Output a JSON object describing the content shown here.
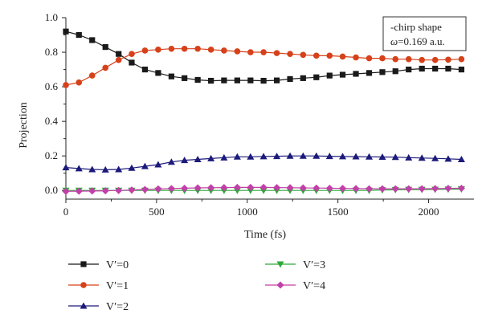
{
  "chart_data": {
    "type": "line",
    "xlabel": "Time (fs)",
    "ylabel": "Projection",
    "xlim": [
      0,
      2250
    ],
    "ylim": [
      -0.05,
      1.0
    ],
    "xticks": [
      0,
      500,
      1000,
      1500,
      2000
    ],
    "xtick_labels": [
      "0",
      "500",
      "1000",
      "1500",
      "2000"
    ],
    "yticks": [
      0.0,
      0.2,
      0.4,
      0.6,
      0.8,
      1.0
    ],
    "ytick_labels": [
      "0.0",
      "0.2",
      "0.4",
      "0.6",
      "0.8",
      "1.0"
    ],
    "grid": false,
    "annotation": {
      "line1": "-chirp shape",
      "line2_symbol": "ω",
      "line2_rest": "=0.169 a.u."
    },
    "x": [
      0,
      72,
      145,
      218,
      291,
      363,
      436,
      509,
      582,
      654,
      727,
      800,
      872,
      945,
      1018,
      1090,
      1163,
      1236,
      1308,
      1381,
      1454,
      1526,
      1599,
      1672,
      1745,
      1817,
      1890,
      1963,
      2036,
      2108,
      2181
    ],
    "series": [
      {
        "name": "V′=0",
        "color": "#1a1a1a",
        "marker": "square",
        "values": [
          0.92,
          0.9,
          0.87,
          0.83,
          0.79,
          0.74,
          0.7,
          0.68,
          0.66,
          0.65,
          0.64,
          0.635,
          0.637,
          0.637,
          0.637,
          0.635,
          0.637,
          0.645,
          0.65,
          0.655,
          0.665,
          0.67,
          0.675,
          0.68,
          0.685,
          0.69,
          0.7,
          0.705,
          0.705,
          0.705,
          0.7
        ]
      },
      {
        "name": "V′=1",
        "color": "#d6411a",
        "marker": "circle",
        "values": [
          0.61,
          0.625,
          0.665,
          0.71,
          0.755,
          0.79,
          0.81,
          0.815,
          0.82,
          0.82,
          0.82,
          0.815,
          0.81,
          0.805,
          0.8,
          0.8,
          0.795,
          0.79,
          0.785,
          0.78,
          0.78,
          0.775,
          0.77,
          0.765,
          0.765,
          0.76,
          0.76,
          0.755,
          0.755,
          0.757,
          0.76
        ]
      },
      {
        "name": "V′=2",
        "color": "#1c1a7a",
        "marker": "triangle-up",
        "values": [
          0.133,
          0.127,
          0.122,
          0.12,
          0.122,
          0.13,
          0.14,
          0.15,
          0.165,
          0.175,
          0.18,
          0.185,
          0.19,
          0.195,
          0.195,
          0.197,
          0.198,
          0.2,
          0.2,
          0.2,
          0.198,
          0.197,
          0.196,
          0.195,
          0.194,
          0.193,
          0.19,
          0.188,
          0.186,
          0.183,
          0.18
        ]
      },
      {
        "name": "V′=3",
        "color": "#2fa83a",
        "marker": "triangle-down",
        "values": [
          0.0,
          0.0,
          0.0,
          0.0,
          0.0,
          0.0,
          0.0,
          0.0,
          0.0,
          0.0,
          0.0,
          0.0,
          0.0,
          0.0,
          0.0,
          0.0,
          0.0,
          0.0,
          0.0,
          0.0,
          0.0,
          0.0,
          0.0,
          0.0,
          0.003,
          0.004,
          0.005,
          0.005,
          0.006,
          0.007,
          0.008
        ]
      },
      {
        "name": "V′=4",
        "color": "#c23fa8",
        "marker": "diamond",
        "values": [
          -0.005,
          -0.004,
          -0.003,
          -0.002,
          0.0,
          0.003,
          0.006,
          0.009,
          0.011,
          0.013,
          0.015,
          0.016,
          0.017,
          0.018,
          0.018,
          0.018,
          0.017,
          0.016,
          0.015,
          0.014,
          0.013,
          0.012,
          0.011,
          0.01,
          0.01,
          0.01,
          0.01,
          0.01,
          0.011,
          0.012,
          0.013
        ]
      }
    ],
    "legend": {
      "placement": "bottom, two columns"
    }
  }
}
